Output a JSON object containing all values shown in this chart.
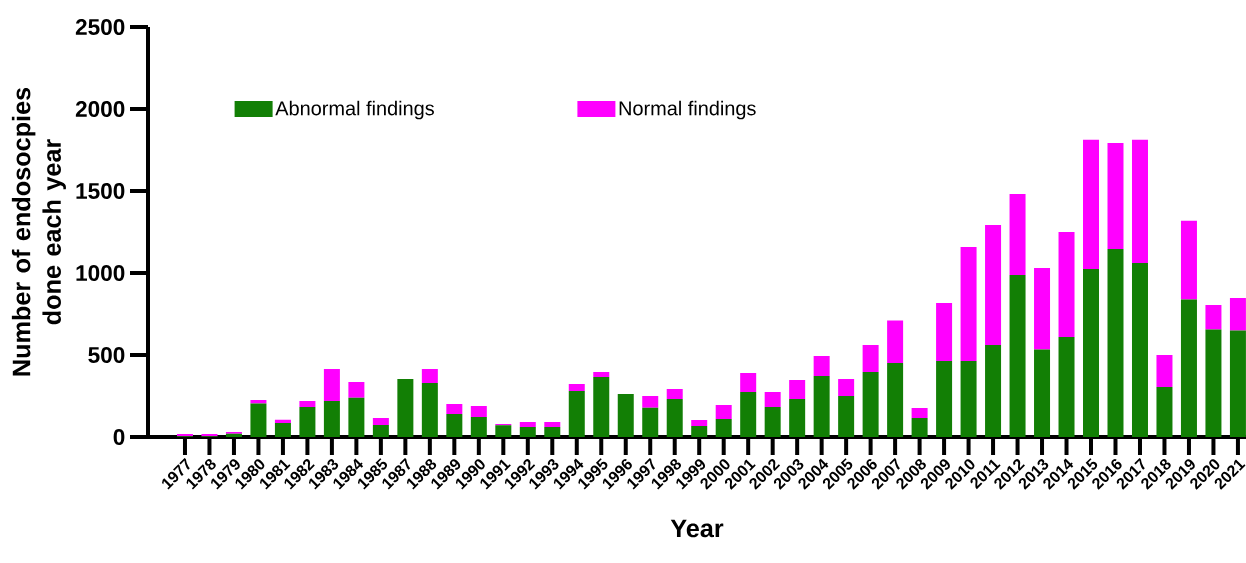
{
  "chart_data": {
    "type": "bar",
    "stacked": true,
    "xlabel": "Year",
    "ylabel": "Number of endosocpies done each year",
    "categories": [
      "1977",
      "1978",
      "1979",
      "1980",
      "1981",
      "1982",
      "1983",
      "1984",
      "1985",
      "1987",
      "1988",
      "1989",
      "1990",
      "1991",
      "1992",
      "1993",
      "1994",
      "1995",
      "1996",
      "1997",
      "1998",
      "1999",
      "2000",
      "2001",
      "2002",
      "2003",
      "2004",
      "2005",
      "2006",
      "2007",
      "2008",
      "2009",
      "2010",
      "2011",
      "2012",
      "2013",
      "2014",
      "2015",
      "2016",
      "2017",
      "2018",
      "2019",
      "2020",
      "2021"
    ],
    "series": [
      {
        "name": "Abnormal findings",
        "color": "#127f05",
        "values": [
          5,
          5,
          20,
          205,
          85,
          183,
          220,
          240,
          73,
          354,
          329,
          140,
          122,
          71,
          61,
          61,
          281,
          366,
          262,
          179,
          232,
          67,
          110,
          275,
          183,
          232,
          372,
          250,
          397,
          451,
          116,
          464,
          464,
          561,
          988,
          533,
          610,
          1025,
          1147,
          1061,
          305,
          838,
          655,
          649
        ]
      },
      {
        "name": "Normal findings",
        "color": "#ff00ff",
        "values": [
          13,
          13,
          10,
          20,
          20,
          37,
          195,
          96,
          43,
          0,
          86,
          61,
          67,
          8,
          30,
          30,
          42,
          31,
          0,
          71,
          61,
          37,
          85,
          116,
          92,
          116,
          122,
          104,
          164,
          260,
          61,
          353,
          695,
          732,
          494,
          498,
          640,
          787,
          646,
          751,
          195,
          480,
          150,
          199
        ]
      }
    ],
    "ylim": [
      0,
      2500
    ],
    "yticks": [
      0,
      500,
      1000,
      1500,
      2000,
      2500
    ],
    "legend": "top"
  }
}
